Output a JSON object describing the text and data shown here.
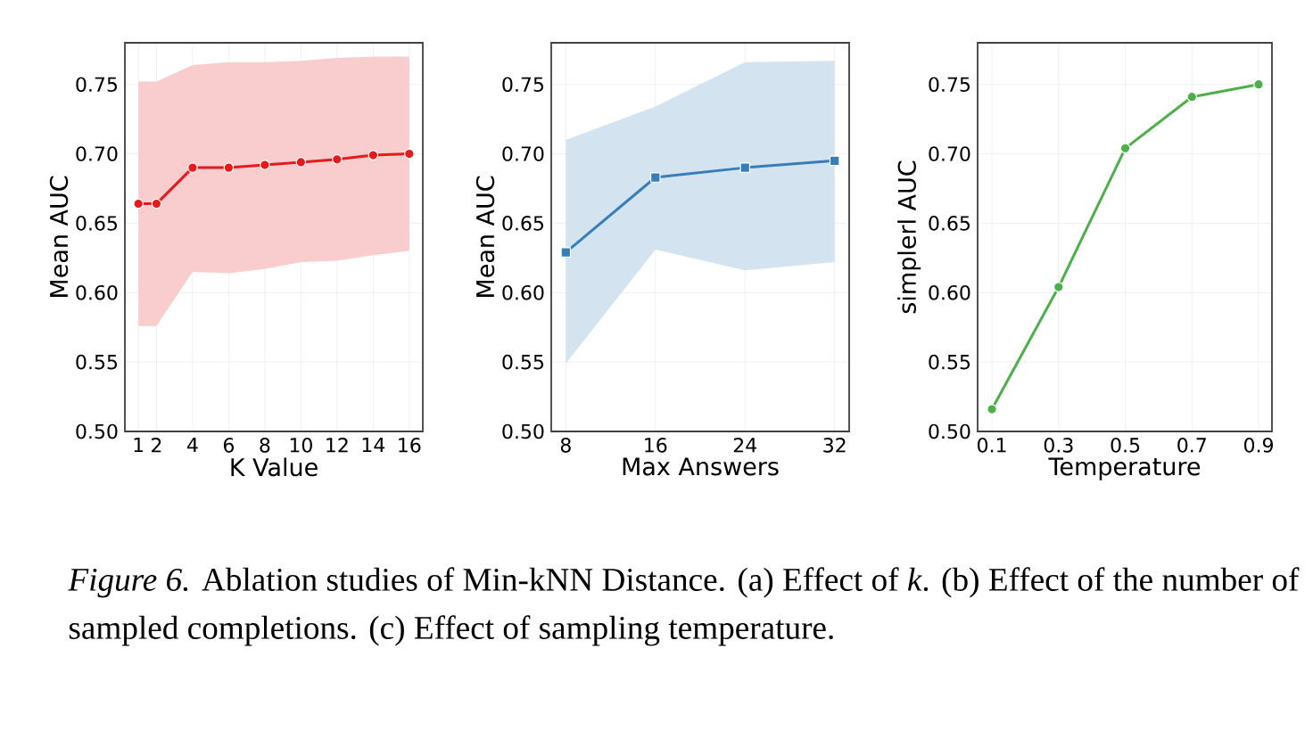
{
  "chart_data": [
    {
      "type": "line",
      "xlabel": "K Value",
      "ylabel": "Mean AUC",
      "x": [
        1,
        2,
        4,
        6,
        8,
        10,
        12,
        14,
        16
      ],
      "xlim": [
        0.25,
        16.75
      ],
      "xticks": [
        1,
        2,
        4,
        6,
        8,
        10,
        12,
        14,
        16
      ],
      "ylim": [
        0.5,
        0.78
      ],
      "yticks": [
        {
          "value": 0.5,
          "label": "0.50"
        },
        {
          "value": 0.55,
          "label": "0.55"
        },
        {
          "value": 0.6,
          "label": "0.60"
        },
        {
          "value": 0.65,
          "label": "0.65"
        },
        {
          "value": 0.7,
          "label": "0.70"
        },
        {
          "value": 0.75,
          "label": "0.75"
        }
      ],
      "grid": true,
      "marker": "circle",
      "line_style": "solid",
      "series": [
        {
          "color": "#e41a1c",
          "values": [
            0.664,
            0.664,
            0.69,
            0.69,
            0.692,
            0.694,
            0.696,
            0.699,
            0.7
          ],
          "upper": [
            0.752,
            0.752,
            0.764,
            0.766,
            0.766,
            0.767,
            0.769,
            0.77,
            0.77
          ],
          "lower": [
            0.576,
            0.576,
            0.615,
            0.614,
            0.617,
            0.622,
            0.623,
            0.627,
            0.63
          ]
        }
      ],
      "annotations": [
        "*Figure 6.* Ablation studies of Min-kNN Distance. (a) Effect of *k*. (b) Effect of the number of sampled completions. (c) Effect of sampling temperature."
      ]
    },
    {
      "type": "line",
      "xlabel": "Max Answers",
      "ylabel": "Mean AUC",
      "x": [
        8,
        16,
        24,
        32
      ],
      "xlim": [
        6.7,
        33.3
      ],
      "xticks": [
        8,
        16,
        24,
        32
      ],
      "ylim": [
        0.5,
        0.78
      ],
      "yticks": [
        {
          "value": 0.5,
          "label": "0.50"
        },
        {
          "value": 0.55,
          "label": "0.55"
        },
        {
          "value": 0.6,
          "label": "0.60"
        },
        {
          "value": 0.65,
          "label": "0.65"
        },
        {
          "value": 0.7,
          "label": "0.70"
        },
        {
          "value": 0.75,
          "label": "0.75"
        }
      ],
      "grid": true,
      "marker": "square",
      "line_style": "solid",
      "series": [
        {
          "color": "#377eb8",
          "values": [
            0.629,
            0.683,
            0.69,
            0.695
          ],
          "upper": [
            0.71,
            0.734,
            0.766,
            0.767
          ],
          "lower": [
            0.549,
            0.631,
            0.616,
            0.622
          ]
        }
      ]
    },
    {
      "type": "line",
      "xlabel": "Temperature",
      "ylabel": "simplerl AUC",
      "x": [
        0.1,
        0.3,
        0.5,
        0.7,
        0.9
      ],
      "xlim": [
        0.057,
        0.94
      ],
      "xticks": [
        0.1,
        0.3,
        0.5,
        0.7,
        0.9
      ],
      "ylim": [
        0.5,
        0.78
      ],
      "yticks": [
        {
          "value": 0.5,
          "label": "0.50"
        },
        {
          "value": 0.55,
          "label": "0.55"
        },
        {
          "value": 0.6,
          "label": "0.60"
        },
        {
          "value": 0.65,
          "label": "0.65"
        },
        {
          "value": 0.7,
          "label": "0.70"
        },
        {
          "value": 0.75,
          "label": "0.75"
        }
      ],
      "grid": true,
      "marker": "circle",
      "line_style": "solid",
      "series": [
        {
          "color": "#4daf4a",
          "values": [
            0.516,
            0.604,
            0.704,
            0.741,
            0.75
          ]
        }
      ]
    }
  ]
}
